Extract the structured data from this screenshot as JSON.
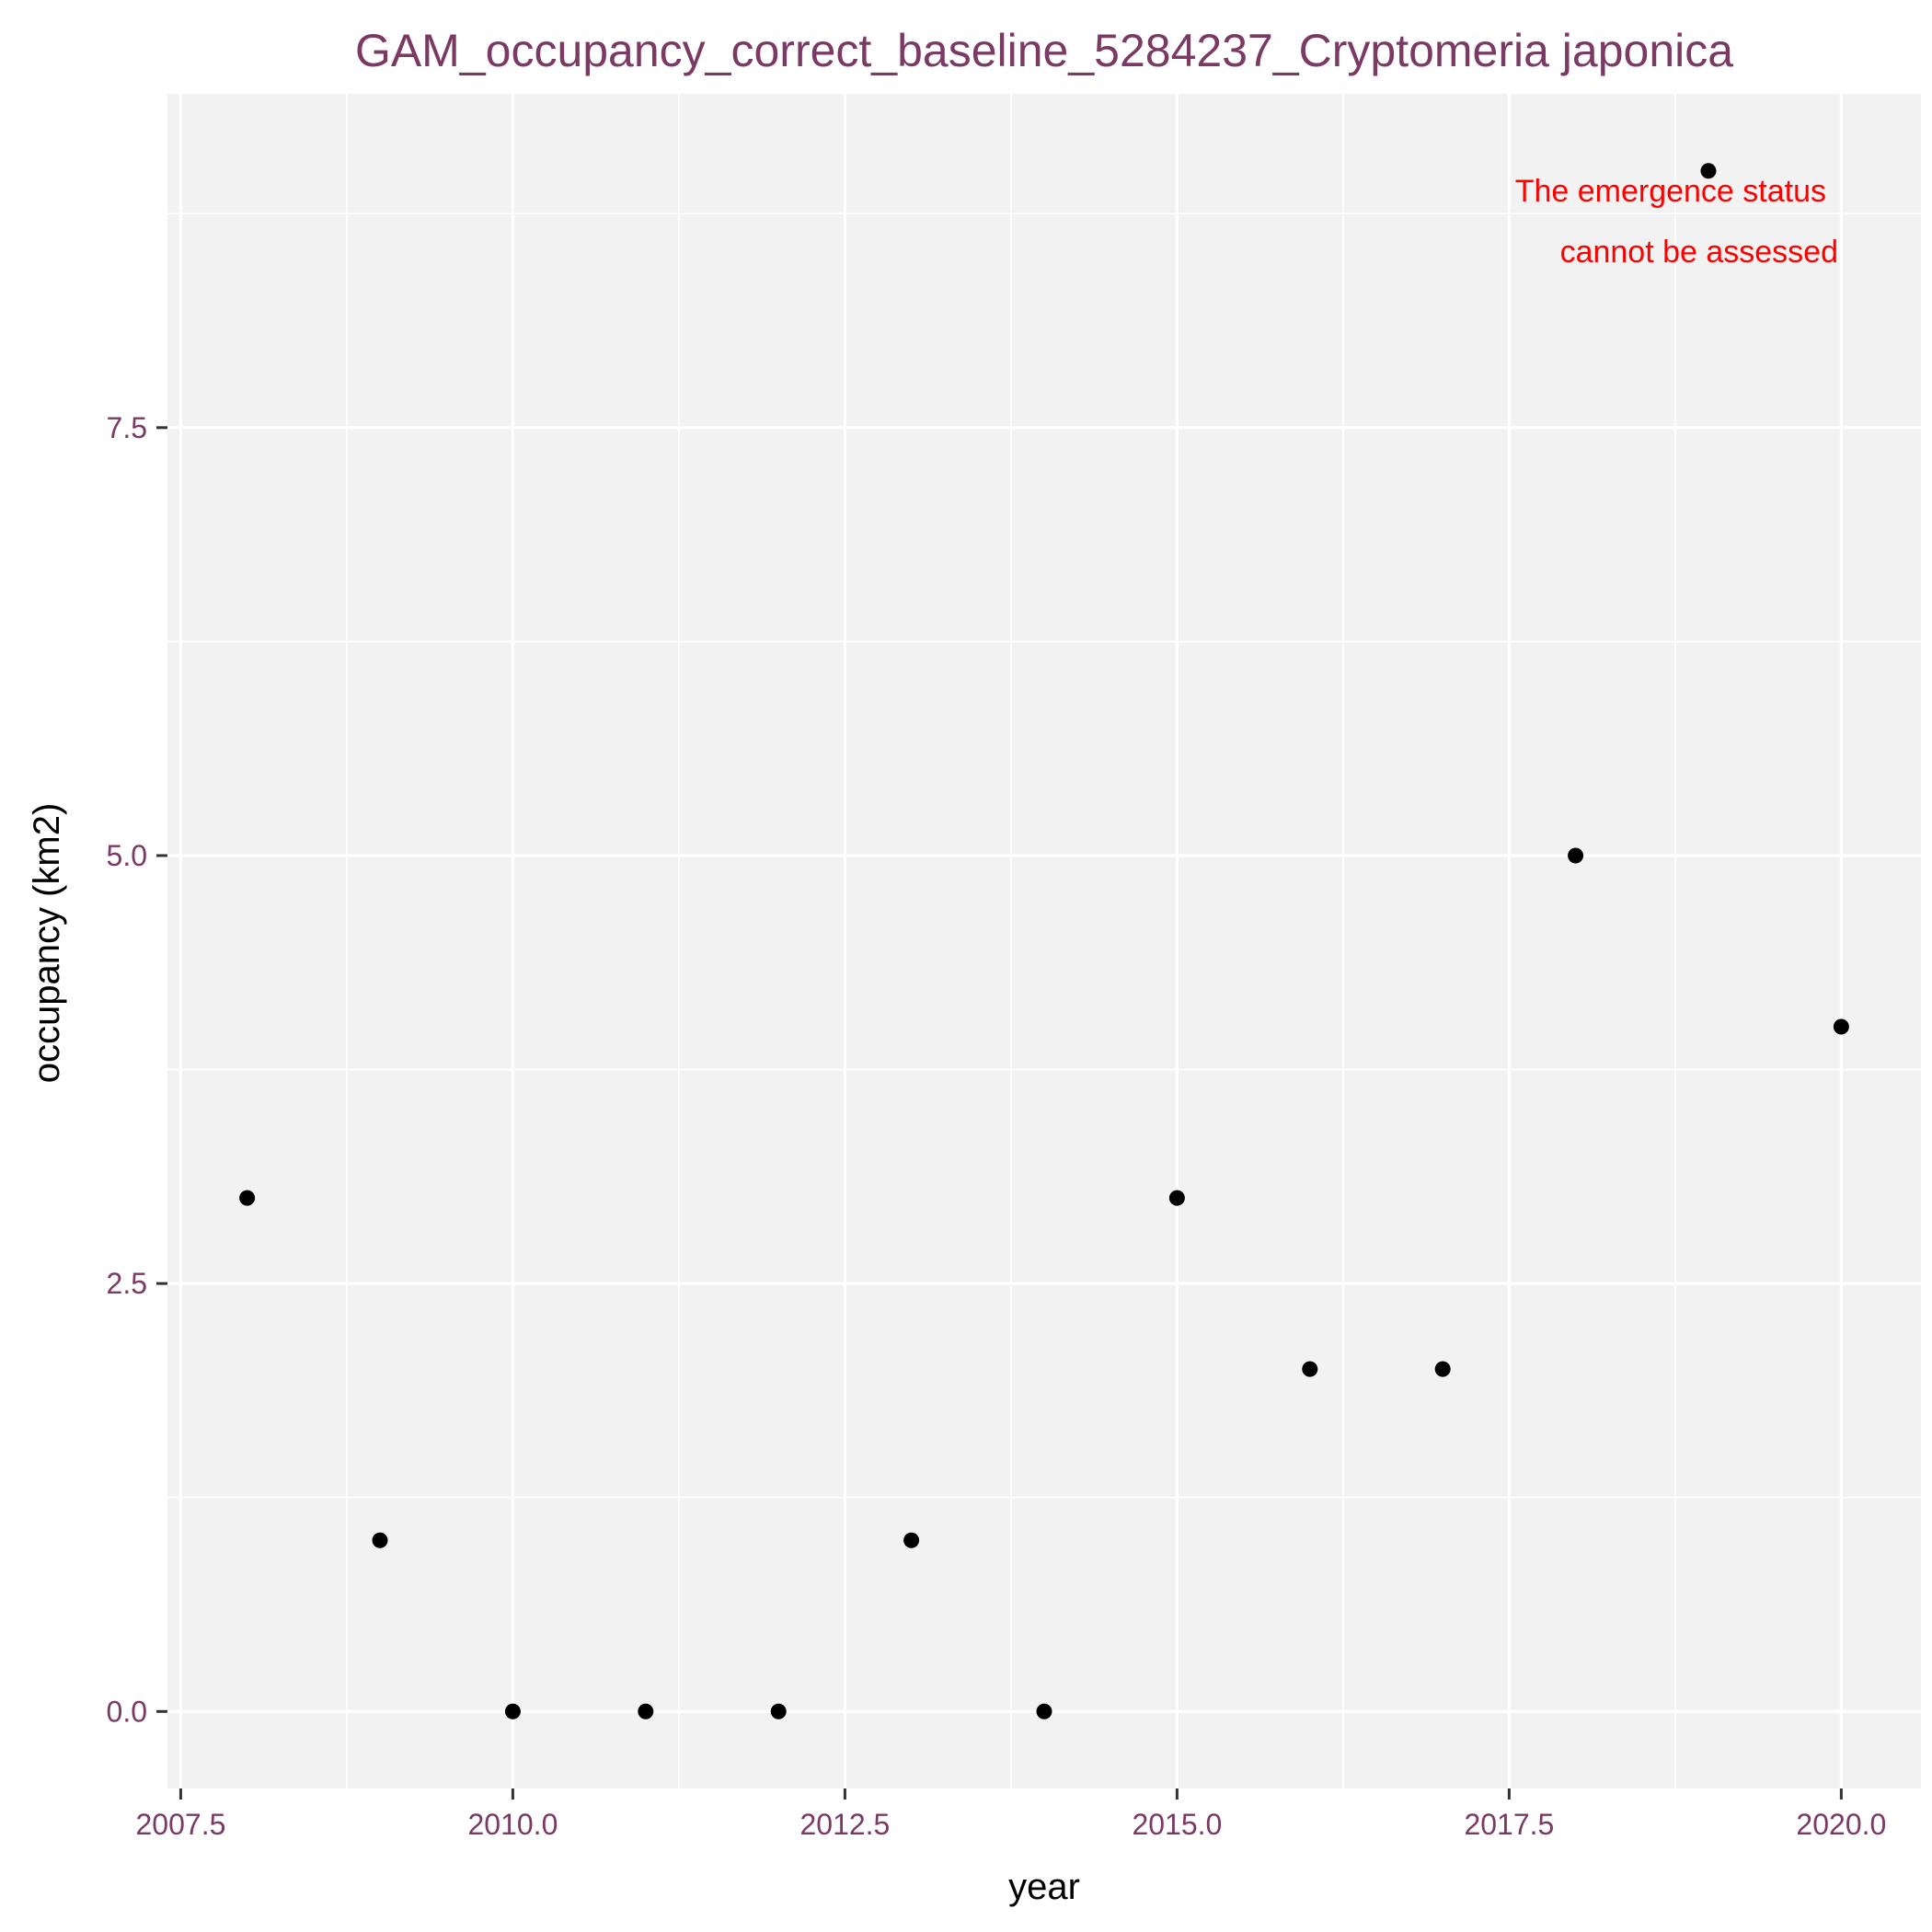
{
  "chart_data": {
    "type": "scatter",
    "title": "GAM_occupancy_correct_baseline_5284237_Cryptomeria japonica",
    "xlabel": "year",
    "ylabel": "occupancy (km2)",
    "xlim": [
      2007.4,
      2020.6
    ],
    "ylim": [
      -0.45,
      9.45
    ],
    "x_ticks": [
      2007.5,
      2010.0,
      2012.5,
      2015.0,
      2017.5,
      2020.0
    ],
    "x_tick_labels": [
      "2007.5",
      "2010.0",
      "2012.5",
      "2015.0",
      "2017.5",
      "2020.0"
    ],
    "y_ticks": [
      0.0,
      2.5,
      5.0,
      7.5
    ],
    "y_tick_labels": [
      "0.0",
      "2.5",
      "5.0",
      "7.5"
    ],
    "grid": true,
    "legend": "none",
    "panel_color": "#f2f2f2",
    "point_color": "#000000",
    "series": [
      {
        "x": [
          2008,
          2009,
          2010,
          2011,
          2012,
          2013,
          2014,
          2015,
          2016,
          2017,
          2018,
          2019,
          2020
        ],
        "y": [
          3,
          1,
          0,
          0,
          0,
          1,
          0,
          3,
          2,
          2,
          5,
          9,
          4
        ]
      }
    ],
    "annotation": {
      "lines": [
        "The emergence status",
        "cannot be assessed"
      ],
      "color": "#ff0000"
    }
  }
}
